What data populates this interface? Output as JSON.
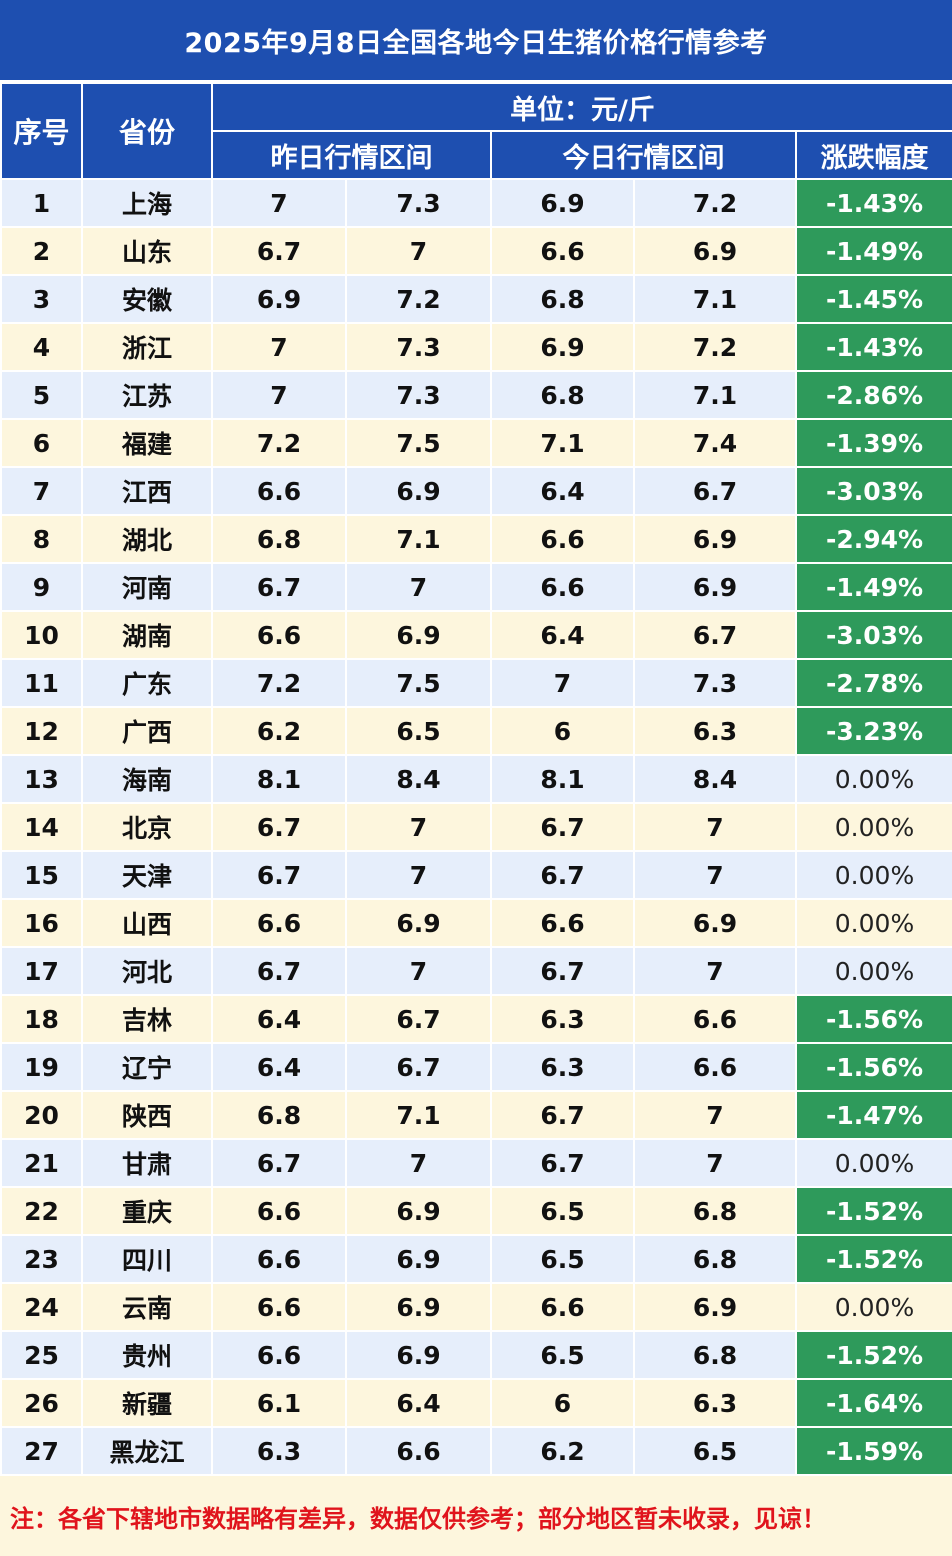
{
  "title": "2025年9月8日全国各地今日生猪价格行情参考",
  "headers": {
    "index": "序号",
    "province": "省份",
    "unit": "单位：元/斤",
    "yesterday": "昨日行情区间",
    "today": "今日行情区间",
    "change": "涨跌幅度"
  },
  "rows": [
    {
      "idx": "1",
      "province": "上海",
      "y_low": "7",
      "y_high": "7.3",
      "t_low": "6.9",
      "t_high": "7.2",
      "change": "-1.43%",
      "trend": "down"
    },
    {
      "idx": "2",
      "province": "山东",
      "y_low": "6.7",
      "y_high": "7",
      "t_low": "6.6",
      "t_high": "6.9",
      "change": "-1.49%",
      "trend": "down"
    },
    {
      "idx": "3",
      "province": "安徽",
      "y_low": "6.9",
      "y_high": "7.2",
      "t_low": "6.8",
      "t_high": "7.1",
      "change": "-1.45%",
      "trend": "down"
    },
    {
      "idx": "4",
      "province": "浙江",
      "y_low": "7",
      "y_high": "7.3",
      "t_low": "6.9",
      "t_high": "7.2",
      "change": "-1.43%",
      "trend": "down"
    },
    {
      "idx": "5",
      "province": "江苏",
      "y_low": "7",
      "y_high": "7.3",
      "t_low": "6.8",
      "t_high": "7.1",
      "change": "-2.86%",
      "trend": "down"
    },
    {
      "idx": "6",
      "province": "福建",
      "y_low": "7.2",
      "y_high": "7.5",
      "t_low": "7.1",
      "t_high": "7.4",
      "change": "-1.39%",
      "trend": "down"
    },
    {
      "idx": "7",
      "province": "江西",
      "y_low": "6.6",
      "y_high": "6.9",
      "t_low": "6.4",
      "t_high": "6.7",
      "change": "-3.03%",
      "trend": "down"
    },
    {
      "idx": "8",
      "province": "湖北",
      "y_low": "6.8",
      "y_high": "7.1",
      "t_low": "6.6",
      "t_high": "6.9",
      "change": "-2.94%",
      "trend": "down"
    },
    {
      "idx": "9",
      "province": "河南",
      "y_low": "6.7",
      "y_high": "7",
      "t_low": "6.6",
      "t_high": "6.9",
      "change": "-1.49%",
      "trend": "down"
    },
    {
      "idx": "10",
      "province": "湖南",
      "y_low": "6.6",
      "y_high": "6.9",
      "t_low": "6.4",
      "t_high": "6.7",
      "change": "-3.03%",
      "trend": "down"
    },
    {
      "idx": "11",
      "province": "广东",
      "y_low": "7.2",
      "y_high": "7.5",
      "t_low": "7",
      "t_high": "7.3",
      "change": "-2.78%",
      "trend": "down"
    },
    {
      "idx": "12",
      "province": "广西",
      "y_low": "6.2",
      "y_high": "6.5",
      "t_low": "6",
      "t_high": "6.3",
      "change": "-3.23%",
      "trend": "down"
    },
    {
      "idx": "13",
      "province": "海南",
      "y_low": "8.1",
      "y_high": "8.4",
      "t_low": "8.1",
      "t_high": "8.4",
      "change": "0.00%",
      "trend": "flat"
    },
    {
      "idx": "14",
      "province": "北京",
      "y_low": "6.7",
      "y_high": "7",
      "t_low": "6.7",
      "t_high": "7",
      "change": "0.00%",
      "trend": "flat"
    },
    {
      "idx": "15",
      "province": "天津",
      "y_low": "6.7",
      "y_high": "7",
      "t_low": "6.7",
      "t_high": "7",
      "change": "0.00%",
      "trend": "flat"
    },
    {
      "idx": "16",
      "province": "山西",
      "y_low": "6.6",
      "y_high": "6.9",
      "t_low": "6.6",
      "t_high": "6.9",
      "change": "0.00%",
      "trend": "flat"
    },
    {
      "idx": "17",
      "province": "河北",
      "y_low": "6.7",
      "y_high": "7",
      "t_low": "6.7",
      "t_high": "7",
      "change": "0.00%",
      "trend": "flat"
    },
    {
      "idx": "18",
      "province": "吉林",
      "y_low": "6.4",
      "y_high": "6.7",
      "t_low": "6.3",
      "t_high": "6.6",
      "change": "-1.56%",
      "trend": "down"
    },
    {
      "idx": "19",
      "province": "辽宁",
      "y_low": "6.4",
      "y_high": "6.7",
      "t_low": "6.3",
      "t_high": "6.6",
      "change": "-1.56%",
      "trend": "down"
    },
    {
      "idx": "20",
      "province": "陕西",
      "y_low": "6.8",
      "y_high": "7.1",
      "t_low": "6.7",
      "t_high": "7",
      "change": "-1.47%",
      "trend": "down"
    },
    {
      "idx": "21",
      "province": "甘肃",
      "y_low": "6.7",
      "y_high": "7",
      "t_low": "6.7",
      "t_high": "7",
      "change": "0.00%",
      "trend": "flat"
    },
    {
      "idx": "22",
      "province": "重庆",
      "y_low": "6.6",
      "y_high": "6.9",
      "t_low": "6.5",
      "t_high": "6.8",
      "change": "-1.52%",
      "trend": "down"
    },
    {
      "idx": "23",
      "province": "四川",
      "y_low": "6.6",
      "y_high": "6.9",
      "t_low": "6.5",
      "t_high": "6.8",
      "change": "-1.52%",
      "trend": "down"
    },
    {
      "idx": "24",
      "province": "云南",
      "y_low": "6.6",
      "y_high": "6.9",
      "t_low": "6.6",
      "t_high": "6.9",
      "change": "0.00%",
      "trend": "flat"
    },
    {
      "idx": "25",
      "province": "贵州",
      "y_low": "6.6",
      "y_high": "6.9",
      "t_low": "6.5",
      "t_high": "6.8",
      "change": "-1.52%",
      "trend": "down"
    },
    {
      "idx": "26",
      "province": "新疆",
      "y_low": "6.1",
      "y_high": "6.4",
      "t_low": "6",
      "t_high": "6.3",
      "change": "-1.64%",
      "trend": "down"
    },
    {
      "idx": "27",
      "province": "黑龙江",
      "y_low": "6.3",
      "y_high": "6.6",
      "t_low": "6.2",
      "t_high": "6.5",
      "change": "-1.59%",
      "trend": "down"
    }
  ],
  "note": "注：各省下辖地市数据略有差异，数据仅供参考；部分地区暂未收录，见谅！",
  "colors": {
    "header_bg": "#1e4fb0",
    "row_odd": "#e6eefb",
    "row_even": "#fdf6dd",
    "down": "#2e9a5b",
    "note": "#e0141c"
  }
}
